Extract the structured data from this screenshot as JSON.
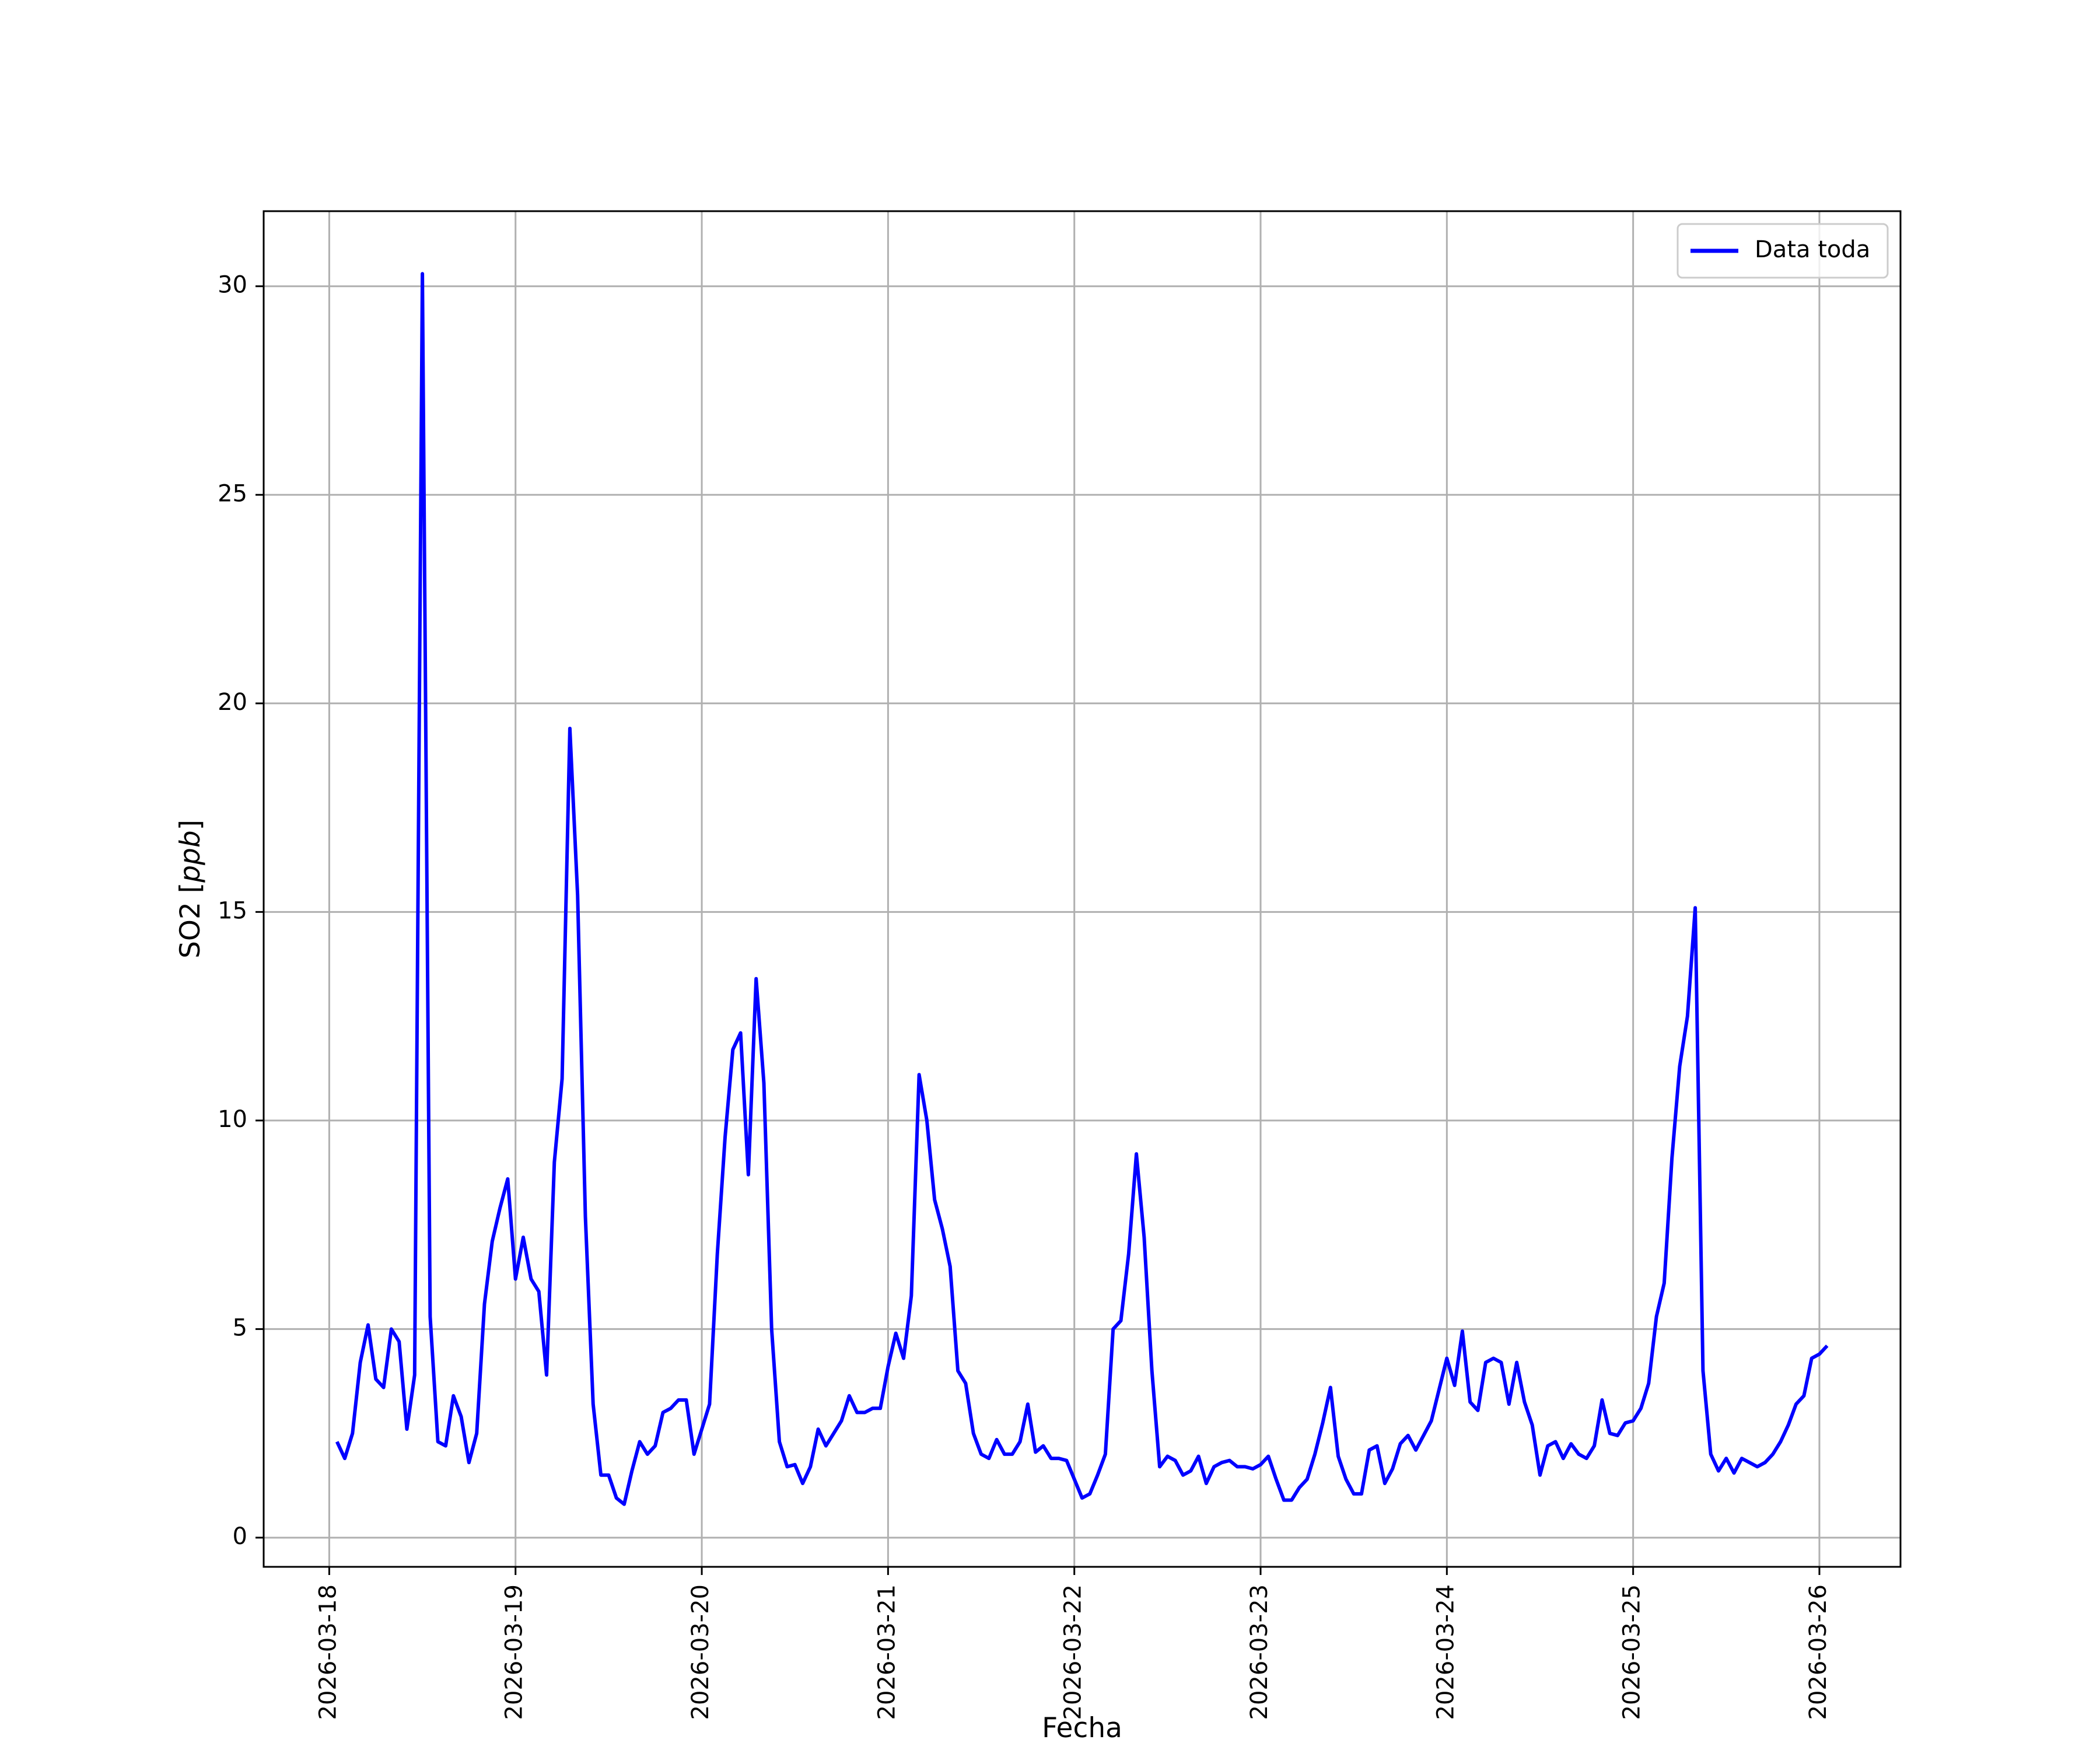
{
  "chart_data": {
    "type": "line",
    "title": "",
    "xlabel": "Fecha",
    "ylabel_prefix": "SO2 [",
    "ylabel_italic": "ppb",
    "ylabel_suffix": "]",
    "x_ticks": [
      "2026-03-18",
      "2026-03-19",
      "2026-03-20",
      "2026-03-21",
      "2026-03-22",
      "2026-03-23",
      "2026-03-24",
      "2026-03-25",
      "2026-03-26"
    ],
    "y_ticks": [
      "0",
      "5",
      "10",
      "15",
      "20",
      "25",
      "30"
    ],
    "xlim": [
      "2026-03-17 15:33",
      "2026-03-26 10:27"
    ],
    "ylim": [
      -0.7,
      31.8
    ],
    "grid": true,
    "legend_position": "top-right",
    "series": [
      {
        "name": "Data toda",
        "color": "#0000ff",
        "start": "2026-03-18 01:00",
        "interval_hours": 1,
        "values": [
          2.3,
          1.9,
          2.5,
          4.2,
          5.1,
          3.8,
          3.6,
          5.0,
          4.7,
          2.6,
          3.9,
          30.3,
          5.3,
          2.3,
          2.2,
          3.4,
          2.9,
          1.8,
          2.5,
          5.6,
          7.1,
          7.9,
          8.6,
          6.2,
          7.2,
          6.2,
          5.9,
          3.9,
          9.0,
          11.0,
          19.4,
          15.4,
          7.7,
          3.2,
          1.5,
          1.5,
          0.95,
          0.8,
          1.6,
          2.3,
          2.0,
          2.2,
          3.0,
          3.1,
          3.3,
          3.3,
          2.0,
          2.6,
          3.2,
          6.8,
          9.6,
          11.7,
          12.1,
          8.7,
          13.4,
          10.9,
          5.0,
          2.3,
          1.7,
          1.75,
          1.3,
          1.7,
          2.6,
          2.2,
          2.5,
          2.8,
          3.4,
          3.0,
          3.0,
          3.1,
          3.1,
          4.1,
          4.9,
          4.3,
          5.8,
          11.1,
          10.0,
          8.1,
          7.4,
          6.5,
          4.0,
          3.7,
          2.5,
          2.0,
          1.9,
          2.35,
          2.0,
          2.0,
          2.3,
          3.2,
          2.05,
          2.2,
          1.9,
          1.9,
          1.85,
          1.4,
          0.95,
          1.05,
          1.5,
          2.0,
          5.0,
          5.2,
          6.8,
          9.2,
          7.2,
          4.0,
          1.7,
          1.95,
          1.85,
          1.5,
          1.6,
          1.95,
          1.3,
          1.7,
          1.8,
          1.85,
          1.7,
          1.7,
          1.65,
          1.75,
          1.95,
          1.4,
          0.9,
          0.9,
          1.2,
          1.4,
          2.0,
          2.75,
          3.6,
          1.95,
          1.4,
          1.05,
          1.05,
          2.1,
          2.2,
          1.3,
          1.65,
          2.25,
          2.45,
          2.1,
          2.45,
          2.8,
          3.55,
          4.3,
          3.65,
          4.95,
          3.25,
          3.05,
          4.2,
          4.3,
          4.2,
          3.2,
          4.2,
          3.25,
          2.7,
          1.5,
          2.2,
          2.3,
          1.9,
          2.25,
          2.0,
          1.9,
          2.2,
          3.3,
          2.5,
          2.45,
          2.75,
          2.8,
          3.1,
          3.7,
          5.3,
          6.1,
          9.1,
          11.3,
          12.5,
          15.1,
          4.0,
          2.0,
          1.6,
          1.9,
          1.55,
          1.9,
          1.8,
          1.7,
          1.8,
          2.0,
          2.3,
          2.7,
          3.2,
          3.4,
          4.3,
          4.4,
          4.6
        ]
      }
    ]
  }
}
